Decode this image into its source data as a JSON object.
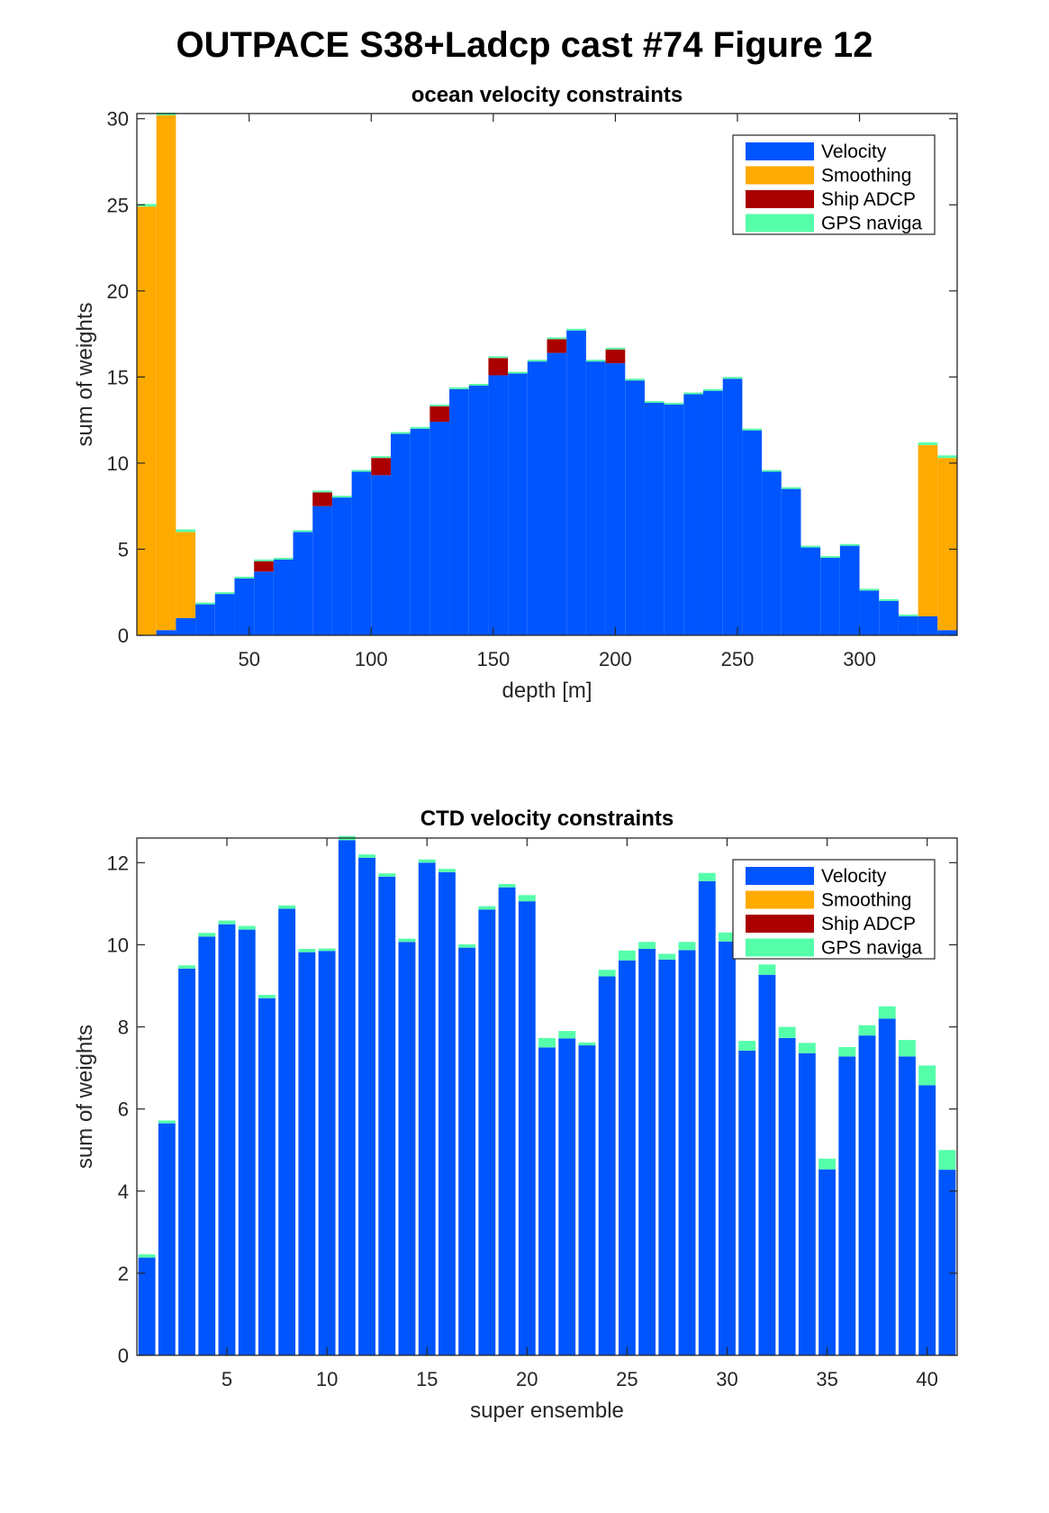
{
  "figure": {
    "title": "OUTPACE S38+Ladcp cast #74  Figure 12"
  },
  "colors": {
    "velocity": "#0055ff",
    "smoothing": "#ffaa00",
    "ship_adcp": "#aa0000",
    "gps_naviga": "#55ffaa"
  },
  "chart_data": [
    {
      "type": "bar",
      "stacked": true,
      "title": "ocean velocity constraints",
      "xlabel": "depth [m]",
      "ylabel": "sum of weights",
      "xlim": [
        4,
        340
      ],
      "ylim": [
        0,
        30.3
      ],
      "xticks": [
        50,
        100,
        150,
        200,
        250,
        300
      ],
      "yticks": [
        0,
        5,
        10,
        15,
        20,
        25,
        30
      ],
      "bar_width": 8,
      "legend_position": "top-right",
      "grid": false,
      "x": [
        8,
        16,
        24,
        32,
        40,
        48,
        56,
        64,
        72,
        80,
        88,
        96,
        104,
        112,
        120,
        128,
        136,
        144,
        152,
        160,
        168,
        176,
        184,
        192,
        200,
        208,
        216,
        224,
        232,
        240,
        248,
        256,
        264,
        272,
        280,
        288,
        296,
        304,
        312,
        320,
        328,
        336
      ],
      "series": [
        {
          "name": "Velocity",
          "color_key": "velocity",
          "values": [
            0,
            0.3,
            1.0,
            1.8,
            2.4,
            3.3,
            3.7,
            4.4,
            6.0,
            7.5,
            8.0,
            9.5,
            9.3,
            11.7,
            12.0,
            12.4,
            14.3,
            14.5,
            15.1,
            15.2,
            15.9,
            16.4,
            17.7,
            15.9,
            15.8,
            14.8,
            13.5,
            13.4,
            14.0,
            14.2,
            14.9,
            11.9,
            9.5,
            8.5,
            5.1,
            4.5,
            5.2,
            2.6,
            2.0,
            1.1,
            1.1,
            0.3
          ]
        },
        {
          "name": "Smoothing",
          "color_key": "smoothing",
          "values": [
            24.9,
            29.9,
            5.0,
            0,
            0,
            0,
            0,
            0,
            0,
            0,
            0,
            0,
            0,
            0,
            0,
            0,
            0,
            0,
            0,
            0,
            0,
            0,
            0,
            0,
            0,
            0,
            0,
            0,
            0,
            0,
            0,
            0,
            0,
            0,
            0,
            0,
            0,
            0,
            0,
            0,
            9.95,
            10.0
          ]
        },
        {
          "name": "Ship ADCP",
          "color_key": "ship_adcp",
          "values": [
            0,
            0,
            0,
            0,
            0,
            0,
            0.6,
            0,
            0,
            0.8,
            0,
            0,
            1.0,
            0,
            0,
            0.9,
            0,
            0,
            1.0,
            0,
            0,
            0.8,
            0,
            0,
            0.8,
            0,
            0,
            0,
            0,
            0,
            0,
            0,
            0,
            0,
            0,
            0,
            0,
            0,
            0,
            0,
            0,
            0
          ]
        },
        {
          "name": "GPS naviga",
          "color_key": "gps_naviga",
          "values": [
            0.15,
            0.15,
            0.15,
            0.1,
            0.1,
            0.1,
            0.1,
            0.1,
            0.1,
            0.1,
            0.1,
            0.1,
            0.1,
            0.1,
            0.1,
            0.1,
            0.1,
            0.1,
            0.1,
            0.1,
            0.1,
            0.1,
            0.1,
            0.1,
            0.1,
            0.1,
            0.1,
            0.1,
            0.1,
            0.1,
            0.1,
            0.1,
            0.1,
            0.1,
            0.1,
            0.1,
            0.1,
            0.1,
            0.1,
            0.1,
            0.15,
            0.15
          ]
        }
      ]
    },
    {
      "type": "bar",
      "stacked": true,
      "title": "CTD velocity constraints",
      "xlabel": "super ensemble",
      "ylabel": "sum of weights",
      "xlim": [
        0.5,
        41.5
      ],
      "ylim": [
        0,
        12.6
      ],
      "xticks": [
        5,
        10,
        15,
        20,
        25,
        30,
        35,
        40
      ],
      "yticks": [
        0,
        2,
        4,
        6,
        8,
        10,
        12
      ],
      "bar_width": 0.85,
      "legend_position": "top-right",
      "grid": false,
      "x": [
        1,
        2,
        3,
        4,
        5,
        6,
        7,
        8,
        9,
        10,
        11,
        12,
        13,
        14,
        15,
        16,
        17,
        18,
        19,
        20,
        21,
        22,
        23,
        24,
        25,
        26,
        27,
        28,
        29,
        30,
        31,
        32,
        33,
        34,
        35,
        36,
        37,
        38,
        39,
        40,
        41
      ],
      "series": [
        {
          "name": "Velocity",
          "color_key": "velocity",
          "values": [
            2.38,
            5.65,
            9.42,
            10.2,
            10.5,
            10.37,
            8.7,
            10.88,
            9.82,
            9.85,
            12.55,
            12.12,
            11.66,
            10.07,
            12.0,
            11.77,
            9.93,
            10.86,
            11.4,
            11.06,
            7.5,
            7.72,
            7.55,
            9.23,
            9.62,
            9.9,
            9.64,
            9.87,
            11.55,
            10.08,
            7.42,
            9.27,
            7.73,
            7.36,
            4.53,
            7.28,
            7.79,
            8.2,
            7.28,
            6.58,
            4.52
          ]
        },
        {
          "name": "Smoothing",
          "color_key": "smoothing",
          "values": [
            0,
            0,
            0,
            0,
            0,
            0,
            0,
            0,
            0,
            0,
            0,
            0,
            0,
            0,
            0,
            0,
            0,
            0,
            0,
            0,
            0,
            0,
            0,
            0,
            0,
            0,
            0,
            0,
            0,
            0,
            0,
            0,
            0,
            0,
            0,
            0,
            0,
            0,
            0,
            0,
            0
          ]
        },
        {
          "name": "Ship ADCP",
          "color_key": "ship_adcp",
          "values": [
            0,
            0,
            0,
            0,
            0,
            0,
            0,
            0,
            0,
            0,
            0,
            0,
            0,
            0,
            0,
            0,
            0,
            0,
            0,
            0,
            0,
            0,
            0,
            0,
            0,
            0,
            0,
            0,
            0,
            0,
            0,
            0,
            0,
            0,
            0,
            0,
            0,
            0,
            0,
            0,
            0
          ]
        },
        {
          "name": "GPS naviga",
          "color_key": "gps_naviga",
          "values": [
            0.08,
            0.07,
            0.08,
            0.09,
            0.09,
            0.09,
            0.08,
            0.08,
            0.08,
            0.06,
            0.1,
            0.08,
            0.08,
            0.08,
            0.08,
            0.08,
            0.08,
            0.08,
            0.08,
            0.15,
            0.23,
            0.18,
            0.07,
            0.16,
            0.24,
            0.17,
            0.14,
            0.2,
            0.2,
            0.22,
            0.24,
            0.25,
            0.27,
            0.25,
            0.26,
            0.23,
            0.25,
            0.3,
            0.4,
            0.48,
            0.48
          ]
        }
      ]
    }
  ]
}
